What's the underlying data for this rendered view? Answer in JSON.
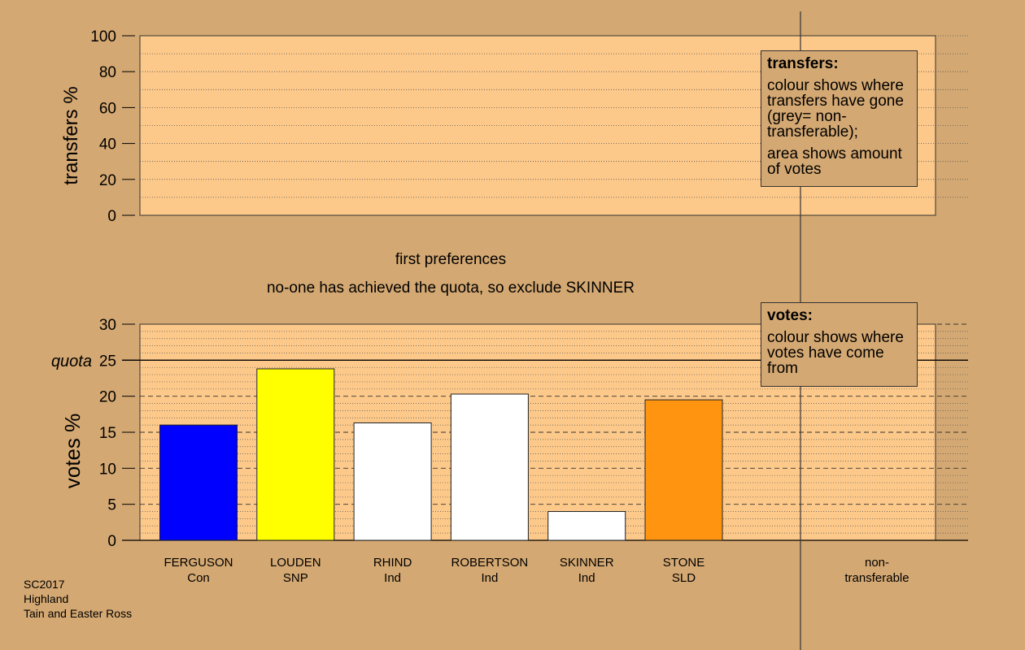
{
  "chart_data": [
    {
      "type": "bar",
      "panel": "transfers",
      "ylabel": "transfers %",
      "ylim": [
        0,
        100
      ],
      "yticks": [
        0,
        20,
        40,
        60,
        80,
        100
      ],
      "categories": [],
      "values": [],
      "legend": {
        "title": "transfers:",
        "paragraphs": [
          "colour shows where transfers have gone (grey= non-transferable);",
          "area shows amount of votes"
        ]
      }
    },
    {
      "type": "bar",
      "panel": "votes",
      "ylabel": "votes %",
      "ylim": [
        0,
        30
      ],
      "yticks": [
        0,
        5,
        10,
        15,
        20,
        25,
        30
      ],
      "quota": 25,
      "quota_label": "quota",
      "categories": [
        "FERGUSON\nCon",
        "LOUDEN\nSNP",
        "RHIND\nInd",
        "ROBERTSON\nInd",
        "SKINNER\nInd",
        "STONE\nSLD",
        "non-\ntransferable"
      ],
      "values": [
        16.0,
        23.8,
        16.3,
        20.3,
        4.0,
        19.5,
        0
      ],
      "colors": [
        "#0000ff",
        "#ffff00",
        "#ffffff",
        "#ffffff",
        "#ffffff",
        "#ff9410",
        null
      ],
      "legend": {
        "title": "votes:",
        "paragraphs": [
          "colour shows where votes have come from"
        ]
      }
    }
  ],
  "captions": {
    "line1": "first preferences",
    "line2": "no-one has achieved the quota, so exclude SKINNER"
  },
  "footer": {
    "line1": "SC2017",
    "line2": "Highland",
    "line3": "Tain and Easter Ross"
  },
  "colors": {
    "background": "#d4a872",
    "plot_fill": "#fdc98a",
    "text": "#000000"
  }
}
